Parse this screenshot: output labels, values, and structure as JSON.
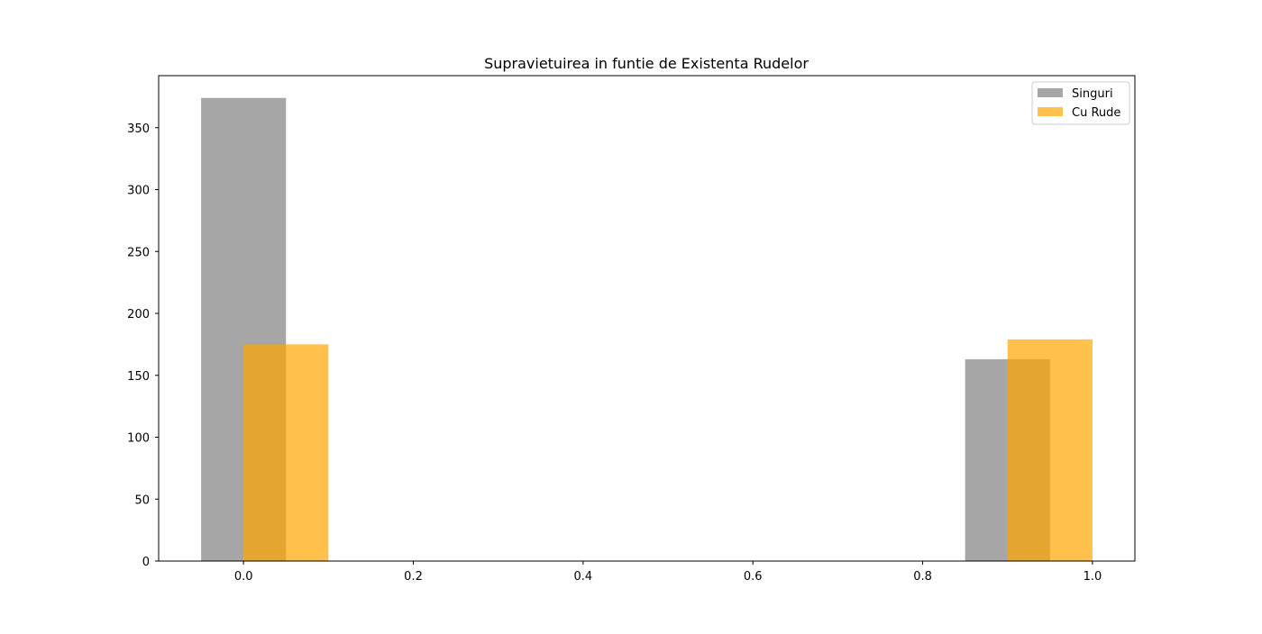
{
  "chart_data": {
    "type": "bar",
    "title": "Supravietuirea in funtie de Existenta Rudelor",
    "xlabel": "",
    "ylabel": "",
    "xlim": [
      -0.1,
      1.05
    ],
    "ylim": [
      0,
      392
    ],
    "xticks": [
      0.0,
      0.2,
      0.4,
      0.6,
      0.8,
      1.0
    ],
    "xtick_labels": [
      "0.0",
      "0.2",
      "0.4",
      "0.6",
      "0.8",
      "1.0"
    ],
    "yticks": [
      0,
      50,
      100,
      150,
      200,
      250,
      300,
      350
    ],
    "ytick_labels": [
      "0",
      "50",
      "100",
      "150",
      "200",
      "250",
      "300",
      "350"
    ],
    "bar_width": 0.1,
    "grid": false,
    "legend_position": "top-right",
    "series": [
      {
        "name": "Singuri",
        "color": "#808080",
        "opacity": 0.7,
        "x": [
          0,
          0.9
        ],
        "values": [
          374,
          163
        ]
      },
      {
        "name": "Cu Rude",
        "color": "#FFA500",
        "opacity": 0.7,
        "x": [
          0.05,
          0.95
        ],
        "values": [
          175,
          179
        ]
      }
    ]
  }
}
